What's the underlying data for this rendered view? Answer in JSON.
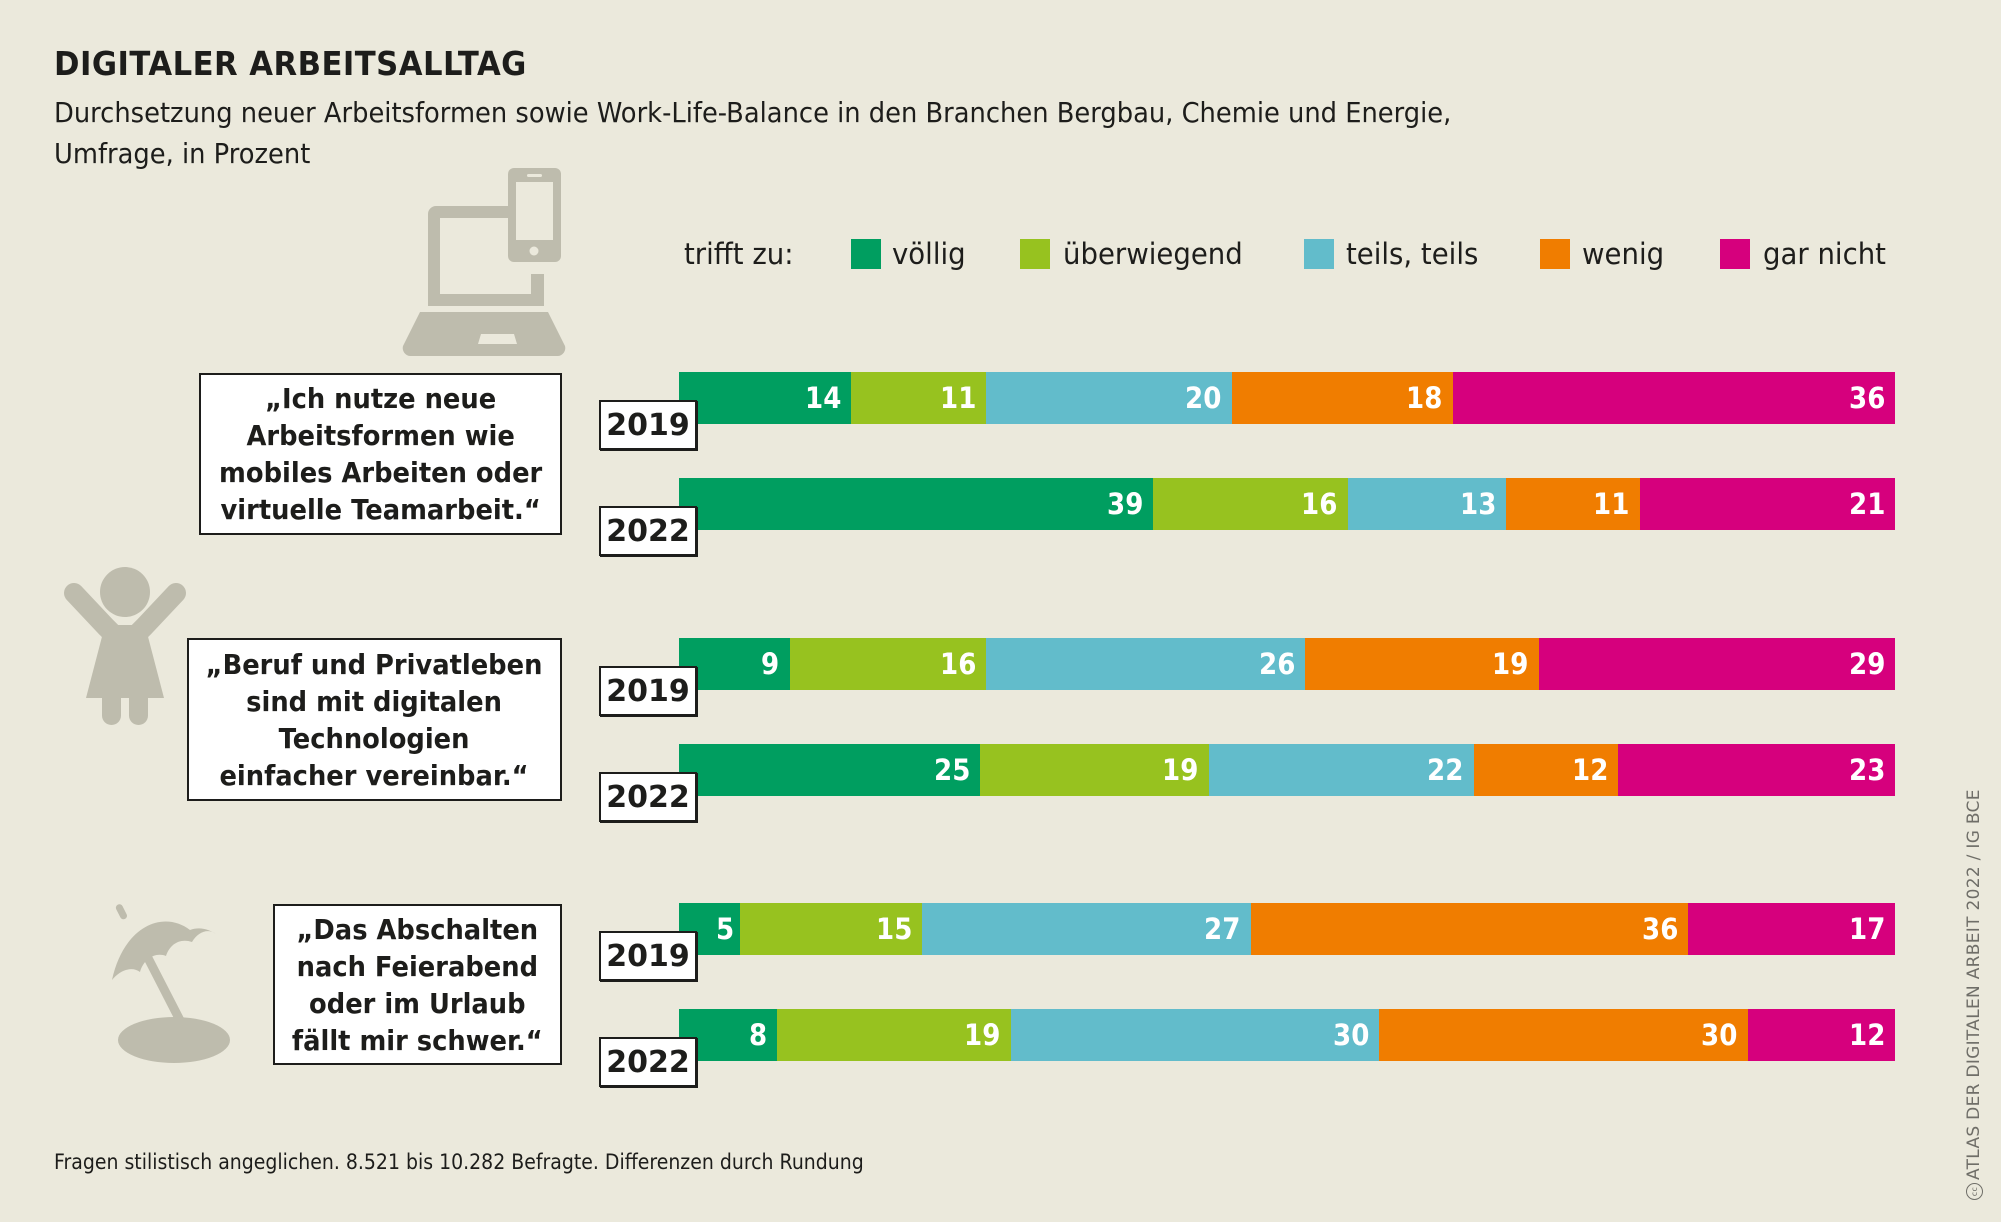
{
  "header": {
    "title": "DIGITALER ARBEITSALLTAG",
    "subtitle_line1": "Durchsetzung neuer Arbeitsformen sowie Work-Life-Balance in den Branchen Bergbau, Chemie und Energie,",
    "subtitle_line2": "Umfrage, in Prozent"
  },
  "legend": {
    "prefix": "trifft zu:",
    "items": [
      {
        "label": "völlig",
        "color": "#009e60"
      },
      {
        "label": "überwiegend",
        "color": "#97c21f"
      },
      {
        "label": "teils, teils",
        "color": "#62bccb"
      },
      {
        "label": "wenig",
        "color": "#f07d00"
      },
      {
        "label": "gar nicht",
        "color": "#d6007d"
      }
    ]
  },
  "icons": [
    "laptop-phone-icon",
    "child-icon",
    "beach-umbrella-icon"
  ],
  "chart_data": {
    "type": "bar",
    "orientation": "horizontal",
    "stacked": true,
    "title": "DIGITALER ARBEITSALLTAG",
    "subtitle": "Durchsetzung neuer Arbeitsformen sowie Work-Life-Balance in den Branchen Bergbau, Chemie und Energie, Umfrage, in Prozent",
    "unit": "Prozent",
    "legend_title": "trifft zu:",
    "legend_position": "top-right",
    "series_names": [
      "völlig",
      "überwiegend",
      "teils, teils",
      "wenig",
      "gar nicht"
    ],
    "groups": [
      {
        "statement": "„Ich nutze neue Arbeitsformen wie mobiles Arbeiten oder virtuelle Teamarbeit.“",
        "statement_lines": [
          "„Ich nutze neue",
          "Arbeitsformen wie",
          "mobiles Arbeiten oder",
          "virtuelle Teamarbeit.“"
        ],
        "rows": [
          {
            "year": "2019",
            "values": [
              14,
              11,
              20,
              18,
              36
            ]
          },
          {
            "year": "2022",
            "values": [
              39,
              16,
              13,
              11,
              21
            ]
          }
        ]
      },
      {
        "statement": "„Beruf und Privatleben sind mit digitalen Technologien einfacher vereinbar.“",
        "statement_lines": [
          "„Beruf und Privatleben",
          "sind mit digitalen",
          "Technologien",
          "einfacher vereinbar.“"
        ],
        "rows": [
          {
            "year": "2019",
            "values": [
              9,
              16,
              26,
              19,
              29
            ]
          },
          {
            "year": "2022",
            "values": [
              25,
              19,
              22,
              12,
              23
            ]
          }
        ]
      },
      {
        "statement": "„Das Abschalten nach Feierabend oder im Urlaub fällt mir schwer.“",
        "statement_lines": [
          "„Das Abschalten",
          "nach Feierabend",
          "oder im Urlaub",
          "fällt mir schwer.“"
        ],
        "rows": [
          {
            "year": "2019",
            "values": [
              5,
              15,
              27,
              36,
              17
            ]
          },
          {
            "year": "2022",
            "values": [
              8,
              19,
              30,
              30,
              12
            ]
          }
        ]
      }
    ]
  },
  "footnote": "Fragen stilistisch angeglichen. 8.521 bis 10.282 Befragte. Differenzen durch Rundung",
  "credit": "ATLAS DER DIGITALEN ARBEIT 2022 / IG BCE",
  "credit_icon": "creative-commons-icon"
}
